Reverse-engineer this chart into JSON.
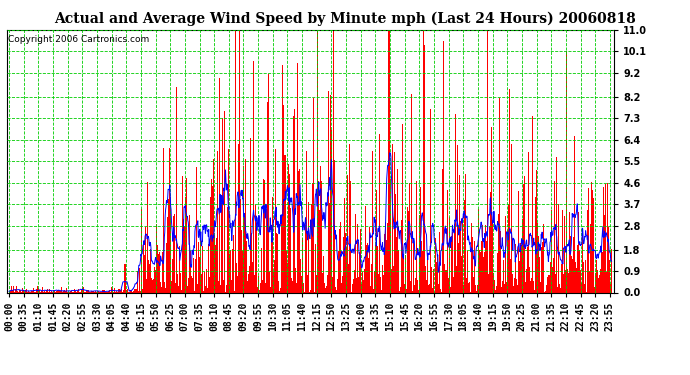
{
  "title": "Actual and Average Wind Speed by Minute mph (Last 24 Hours) 20060818",
  "copyright": "Copyright 2006 Cartronics.com",
  "yticks": [
    0.0,
    0.9,
    1.8,
    2.8,
    3.7,
    4.6,
    5.5,
    6.4,
    7.3,
    8.2,
    9.2,
    10.1,
    11.0
  ],
  "ylim": [
    0.0,
    11.0
  ],
  "bar_color": "#ff0000",
  "line_color": "#0000ff",
  "grid_color": "#00cc00",
  "background_color": "#ffffff",
  "title_fontsize": 10,
  "copyright_fontsize": 6.5,
  "tick_fontsize": 7,
  "n_minutes": 1440,
  "tick_step": 35
}
